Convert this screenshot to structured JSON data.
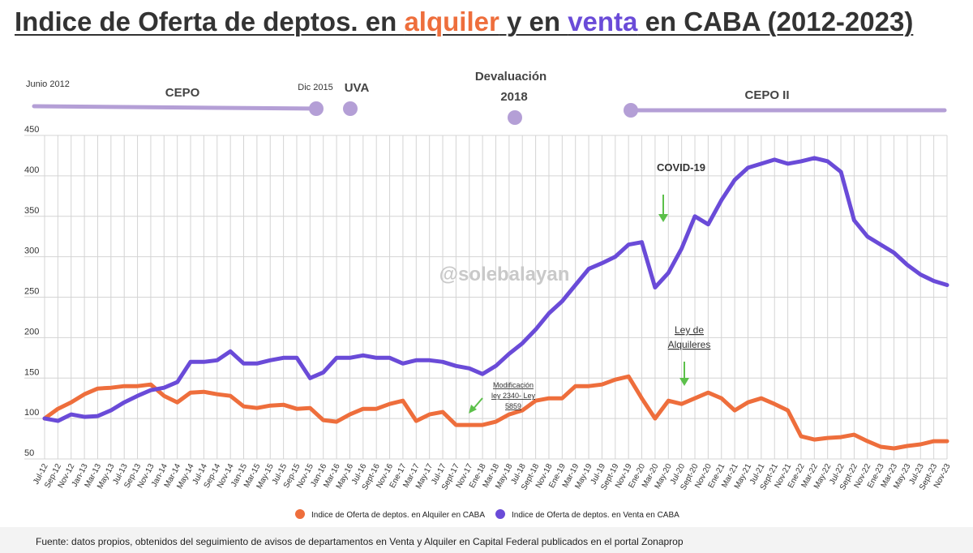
{
  "title": {
    "part1": "Indice de Oferta de deptos. en ",
    "alquiler": "alquiler",
    "part2": " y en ",
    "venta": "venta",
    "part3": " en CABA  (2012-2023)"
  },
  "periods": {
    "junio2012": "Junio 2012",
    "cepo": "CEPO",
    "dic2015": "Dic 2015",
    "uva": "UVA",
    "devaluacion": "Devaluación",
    "year2018": "2018",
    "cepo2": "CEPO II"
  },
  "annotations": {
    "covid": "COVID-19",
    "ley_line1": "Ley de",
    "ley_line2": "Alquileres",
    "mod_line1": "Modificación",
    "mod_line2": "ley 2340- Ley",
    "mod_line3": "5859"
  },
  "watermark": "@solebalayan",
  "footer": "Fuente: datos propios, obtenidos del seguimiento de avisos de departamentos en Venta y Alquiler en Capital Federal publicados en el portal Zonaprop",
  "colors": {
    "alquiler": "#ee6e3c",
    "venta": "#6a4bd8",
    "timeline": "#b49fd6",
    "arrow": "#5cc04a"
  },
  "chart_data": {
    "type": "line",
    "ylim": [
      50,
      450
    ],
    "yticks": [
      50,
      100,
      150,
      200,
      250,
      300,
      350,
      400,
      450
    ],
    "categories": [
      "Jul-12",
      "Sep-12",
      "Nov-12",
      "Jan-13",
      "Mar-13",
      "May-13",
      "Jul-13",
      "Sep-13",
      "Nov-13",
      "Jan-14",
      "Mar-14",
      "May-14",
      "Jul-14",
      "Sep-14",
      "Nov-14",
      "Jan-15",
      "Mar-15",
      "May-15",
      "Jul-15",
      "Sep-15",
      "Nov-15",
      "Jan-16",
      "Mar-16",
      "May-16",
      "Jul-16",
      "Sept-16",
      "Nov-16",
      "Ene-17",
      "Mar-17",
      "May-17",
      "Jul-17",
      "Sept-17",
      "Nov-17",
      "Ene-18",
      "Mar-18",
      "May-18",
      "Jul-18",
      "Sept-18",
      "Nov-18",
      "Ene-19",
      "Mar-19",
      "May-19",
      "Jul-19",
      "Sept-19",
      "Nov-19",
      "Ene-20",
      "Mar-20",
      "May-20",
      "Jul-20",
      "Sept-20",
      "Nov-20",
      "Ene-21",
      "Mar-21",
      "May-21",
      "Jul-21",
      "Sept-21",
      "Nov-21",
      "Ene-22",
      "Mar-22",
      "May-22",
      "Jul-22",
      "Sept-22",
      "Nov-22",
      "Ene-23",
      "Mar-23",
      "May-23",
      "Jul-23",
      "Sept-23",
      "Nov-23"
    ],
    "series": [
      {
        "name": "Indice de Oferta de deptos. en Alquiler en CABA",
        "values": [
          100,
          112,
          120,
          130,
          137,
          138,
          140,
          140,
          142,
          128,
          120,
          132,
          133,
          130,
          128,
          115,
          113,
          116,
          117,
          112,
          113,
          98,
          96,
          105,
          112,
          112,
          118,
          122,
          97,
          105,
          108,
          92,
          92,
          92,
          96,
          105,
          110,
          122,
          125,
          125,
          140,
          140,
          142,
          148,
          152,
          125,
          100,
          122,
          118,
          125,
          132,
          125,
          110,
          120,
          125,
          118,
          110,
          78,
          74,
          76,
          77,
          80,
          72,
          65,
          63,
          66,
          68,
          72,
          72
        ]
      },
      {
        "name": "Indice de Oferta de deptos. en Venta en CABA",
        "values": [
          100,
          97,
          105,
          102,
          103,
          110,
          120,
          128,
          135,
          138,
          145,
          170,
          170,
          172,
          183,
          168,
          168,
          172,
          175,
          175,
          150,
          157,
          175,
          175,
          178,
          175,
          175,
          168,
          172,
          172,
          170,
          165,
          162,
          155,
          165,
          180,
          193,
          210,
          230,
          245,
          265,
          285,
          292,
          300,
          315,
          318,
          262,
          280,
          310,
          350,
          340,
          370,
          395,
          410,
          415,
          420,
          415,
          418,
          422,
          418,
          405,
          345,
          325,
          315,
          305,
          290,
          278,
          270,
          265
        ]
      }
    ]
  }
}
